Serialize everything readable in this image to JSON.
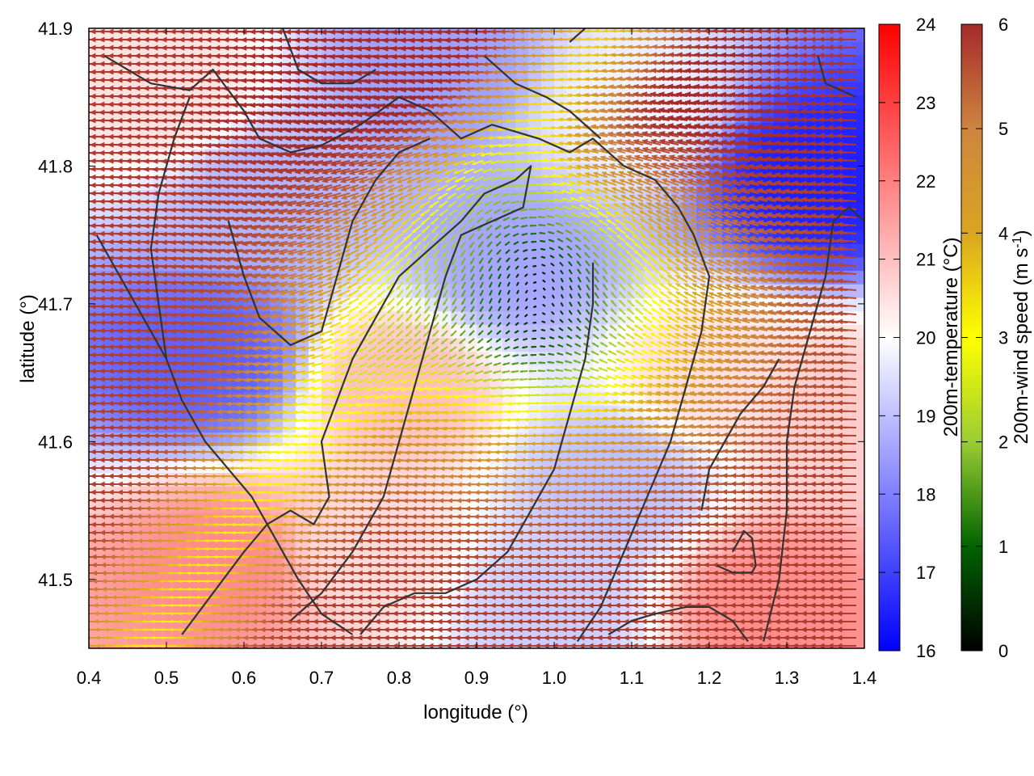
{
  "chart_data": {
    "type": "heatmap",
    "title": "",
    "xlabel": "longitude (°)",
    "ylabel": "latitude (°)",
    "xlim": [
      0.4,
      1.4
    ],
    "ylim": [
      41.45,
      41.9
    ],
    "x_ticks": [
      "0.4",
      "0.5",
      "0.6",
      "0.7",
      "0.8",
      "0.9",
      "1.0",
      "1.1",
      "1.2",
      "1.3",
      "1.4"
    ],
    "y_ticks": [
      "41.5",
      "41.6",
      "41.7",
      "41.8",
      "41.9"
    ],
    "grid": false,
    "temperature_colorbar": {
      "label": "200m-temperature (°C)",
      "range": [
        16,
        24
      ],
      "ticks": [
        "16",
        "17",
        "18",
        "19",
        "20",
        "21",
        "22",
        "23",
        "24"
      ],
      "colors": [
        "#0000ff",
        "#ffffff",
        "#ff0000"
      ]
    },
    "wind_colorbar": {
      "label_main": "200m-wind speed (m s",
      "label_sup": "-1",
      "label_end": ")",
      "range": [
        0,
        6
      ],
      "ticks": [
        "0",
        "1",
        "2",
        "3",
        "4",
        "5",
        "6"
      ],
      "colors": [
        "#000000",
        "#006400",
        "#9acd32",
        "#ffff00",
        "#daa520",
        "#cd853f",
        "#a52a2a"
      ]
    },
    "temperature_field": [
      {
        "lon": 0.55,
        "lat": 41.66,
        "value": 17.5
      },
      {
        "lon": 0.5,
        "lat": 41.85,
        "value": 20.5
      },
      {
        "lon": 0.62,
        "lat": 41.78,
        "value": 18.8
      },
      {
        "lon": 0.85,
        "lat": 41.87,
        "value": 18.5
      },
      {
        "lon": 0.58,
        "lat": 41.51,
        "value": 21.8
      },
      {
        "lon": 0.8,
        "lat": 41.64,
        "value": 21.0
      },
      {
        "lon": 0.95,
        "lat": 41.73,
        "value": 18.6
      },
      {
        "lon": 1.08,
        "lat": 41.57,
        "value": 19.0
      },
      {
        "lon": 1.33,
        "lat": 41.79,
        "value": 16.5
      },
      {
        "lon": 1.28,
        "lat": 41.48,
        "value": 21.8
      },
      {
        "lon": 1.0,
        "lat": 41.48,
        "value": 19.2
      },
      {
        "lon": 0.75,
        "lat": 41.52,
        "value": 20.6
      },
      {
        "lon": 1.2,
        "lat": 41.65,
        "value": 20.5
      },
      {
        "lon": 1.37,
        "lat": 41.62,
        "value": 20.8
      },
      {
        "lon": 1.1,
        "lat": 41.84,
        "value": 19.8
      }
    ],
    "wind_field": {
      "vortex_center": {
        "lon": 0.98,
        "lat": 41.74
      },
      "background_speed": 5.8,
      "background_direction": "westward"
    },
    "contours": [
      [
        [
          0.42,
          41.88
        ],
        [
          0.48,
          41.86
        ],
        [
          0.53,
          41.855
        ],
        [
          0.56,
          41.87
        ],
        [
          0.6,
          41.84
        ],
        [
          0.62,
          41.82
        ],
        [
          0.66,
          41.81
        ],
        [
          0.7,
          41.815
        ],
        [
          0.75,
          41.83
        ],
        [
          0.8,
          41.85
        ],
        [
          0.84,
          41.84
        ],
        [
          0.88,
          41.82
        ],
        [
          0.92,
          41.83
        ],
        [
          0.98,
          41.82
        ],
        [
          1.02,
          41.81
        ],
        [
          1.05,
          41.82
        ],
        [
          1.09,
          41.8
        ],
        [
          1.13,
          41.79
        ],
        [
          1.16,
          41.77
        ],
        [
          1.18,
          41.75
        ],
        [
          1.2,
          41.72
        ],
        [
          1.19,
          41.68
        ],
        [
          1.17,
          41.64
        ],
        [
          1.15,
          41.6
        ],
        [
          1.12,
          41.56
        ],
        [
          1.09,
          41.52
        ],
        [
          1.06,
          41.48
        ],
        [
          1.03,
          41.455
        ]
      ],
      [
        [
          0.52,
          41.46
        ],
        [
          0.56,
          41.49
        ],
        [
          0.6,
          41.52
        ],
        [
          0.63,
          41.54
        ],
        [
          0.66,
          41.55
        ],
        [
          0.69,
          41.54
        ],
        [
          0.71,
          41.56
        ],
        [
          0.7,
          41.6
        ],
        [
          0.72,
          41.63
        ],
        [
          0.74,
          41.66
        ],
        [
          0.77,
          41.69
        ],
        [
          0.8,
          41.72
        ],
        [
          0.84,
          41.74
        ],
        [
          0.88,
          41.76
        ],
        [
          0.91,
          41.78
        ],
        [
          0.95,
          41.79
        ],
        [
          0.97,
          41.8
        ],
        [
          0.96,
          41.77
        ],
        [
          0.92,
          41.76
        ],
        [
          0.88,
          41.75
        ],
        [
          0.86,
          41.72
        ],
        [
          0.84,
          41.68
        ],
        [
          0.82,
          41.64
        ],
        [
          0.8,
          41.6
        ],
        [
          0.78,
          41.56
        ],
        [
          0.74,
          41.52
        ],
        [
          0.7,
          41.49
        ],
        [
          0.66,
          41.47
        ]
      ],
      [
        [
          0.41,
          41.75
        ],
        [
          0.44,
          41.72
        ],
        [
          0.47,
          41.69
        ],
        [
          0.5,
          41.66
        ],
        [
          0.52,
          41.63
        ],
        [
          0.55,
          41.6
        ],
        [
          0.58,
          41.58
        ],
        [
          0.61,
          41.56
        ],
        [
          0.64,
          41.53
        ],
        [
          0.67,
          41.5
        ],
        [
          0.7,
          41.475
        ],
        [
          0.74,
          41.46
        ]
      ],
      [
        [
          0.5,
          41.66
        ],
        [
          0.49,
          41.7
        ],
        [
          0.48,
          41.74
        ],
        [
          0.49,
          41.78
        ],
        [
          0.51,
          41.82
        ],
        [
          0.53,
          41.85
        ]
      ],
      [
        [
          0.75,
          41.46
        ],
        [
          0.78,
          41.48
        ],
        [
          0.82,
          41.49
        ],
        [
          0.86,
          41.49
        ],
        [
          0.9,
          41.5
        ],
        [
          0.94,
          41.52
        ],
        [
          0.97,
          41.55
        ],
        [
          1.0,
          41.58
        ],
        [
          1.02,
          41.62
        ],
        [
          1.04,
          41.66
        ],
        [
          1.05,
          41.7
        ],
        [
          1.05,
          41.73
        ]
      ],
      [
        [
          1.07,
          41.46
        ],
        [
          1.1,
          41.47
        ],
        [
          1.13,
          41.475
        ],
        [
          1.17,
          41.48
        ],
        [
          1.2,
          41.48
        ],
        [
          1.23,
          41.47
        ],
        [
          1.25,
          41.455
        ]
      ],
      [
        [
          1.23,
          41.52
        ],
        [
          1.245,
          41.535
        ],
        [
          1.255,
          41.53
        ],
        [
          1.26,
          41.51
        ],
        [
          1.255,
          41.505
        ],
        [
          1.23,
          41.505
        ],
        [
          1.21,
          41.51
        ]
      ],
      [
        [
          1.27,
          41.455
        ],
        [
          1.29,
          41.5
        ],
        [
          1.3,
          41.55
        ],
        [
          1.3,
          41.6
        ],
        [
          1.31,
          41.64
        ],
        [
          1.33,
          41.68
        ],
        [
          1.35,
          41.72
        ],
        [
          1.36,
          41.76
        ],
        [
          1.38,
          41.77
        ],
        [
          1.4,
          41.76
        ]
      ],
      [
        [
          1.29,
          41.66
        ],
        [
          1.27,
          41.64
        ],
        [
          1.24,
          41.62
        ],
        [
          1.22,
          41.6
        ],
        [
          1.2,
          41.58
        ],
        [
          1.19,
          41.55
        ]
      ],
      [
        [
          1.34,
          41.88
        ],
        [
          1.35,
          41.86
        ],
        [
          1.37,
          41.855
        ],
        [
          1.39,
          41.85
        ]
      ],
      [
        [
          0.91,
          41.88
        ],
        [
          0.95,
          41.86
        ],
        [
          0.99,
          41.85
        ],
        [
          1.02,
          41.84
        ],
        [
          1.06,
          41.82
        ]
      ],
      [
        [
          0.65,
          41.9
        ],
        [
          0.67,
          41.87
        ],
        [
          0.7,
          41.86
        ],
        [
          0.74,
          41.86
        ],
        [
          0.77,
          41.87
        ]
      ],
      [
        [
          1.02,
          41.89
        ],
        [
          1.04,
          41.9
        ]
      ],
      [
        [
          0.58,
          41.76
        ],
        [
          0.6,
          41.72
        ],
        [
          0.62,
          41.69
        ],
        [
          0.66,
          41.67
        ],
        [
          0.7,
          41.68
        ],
        [
          0.72,
          41.72
        ],
        [
          0.74,
          41.76
        ],
        [
          0.77,
          41.79
        ],
        [
          0.8,
          41.81
        ],
        [
          0.84,
          41.82
        ]
      ]
    ]
  }
}
